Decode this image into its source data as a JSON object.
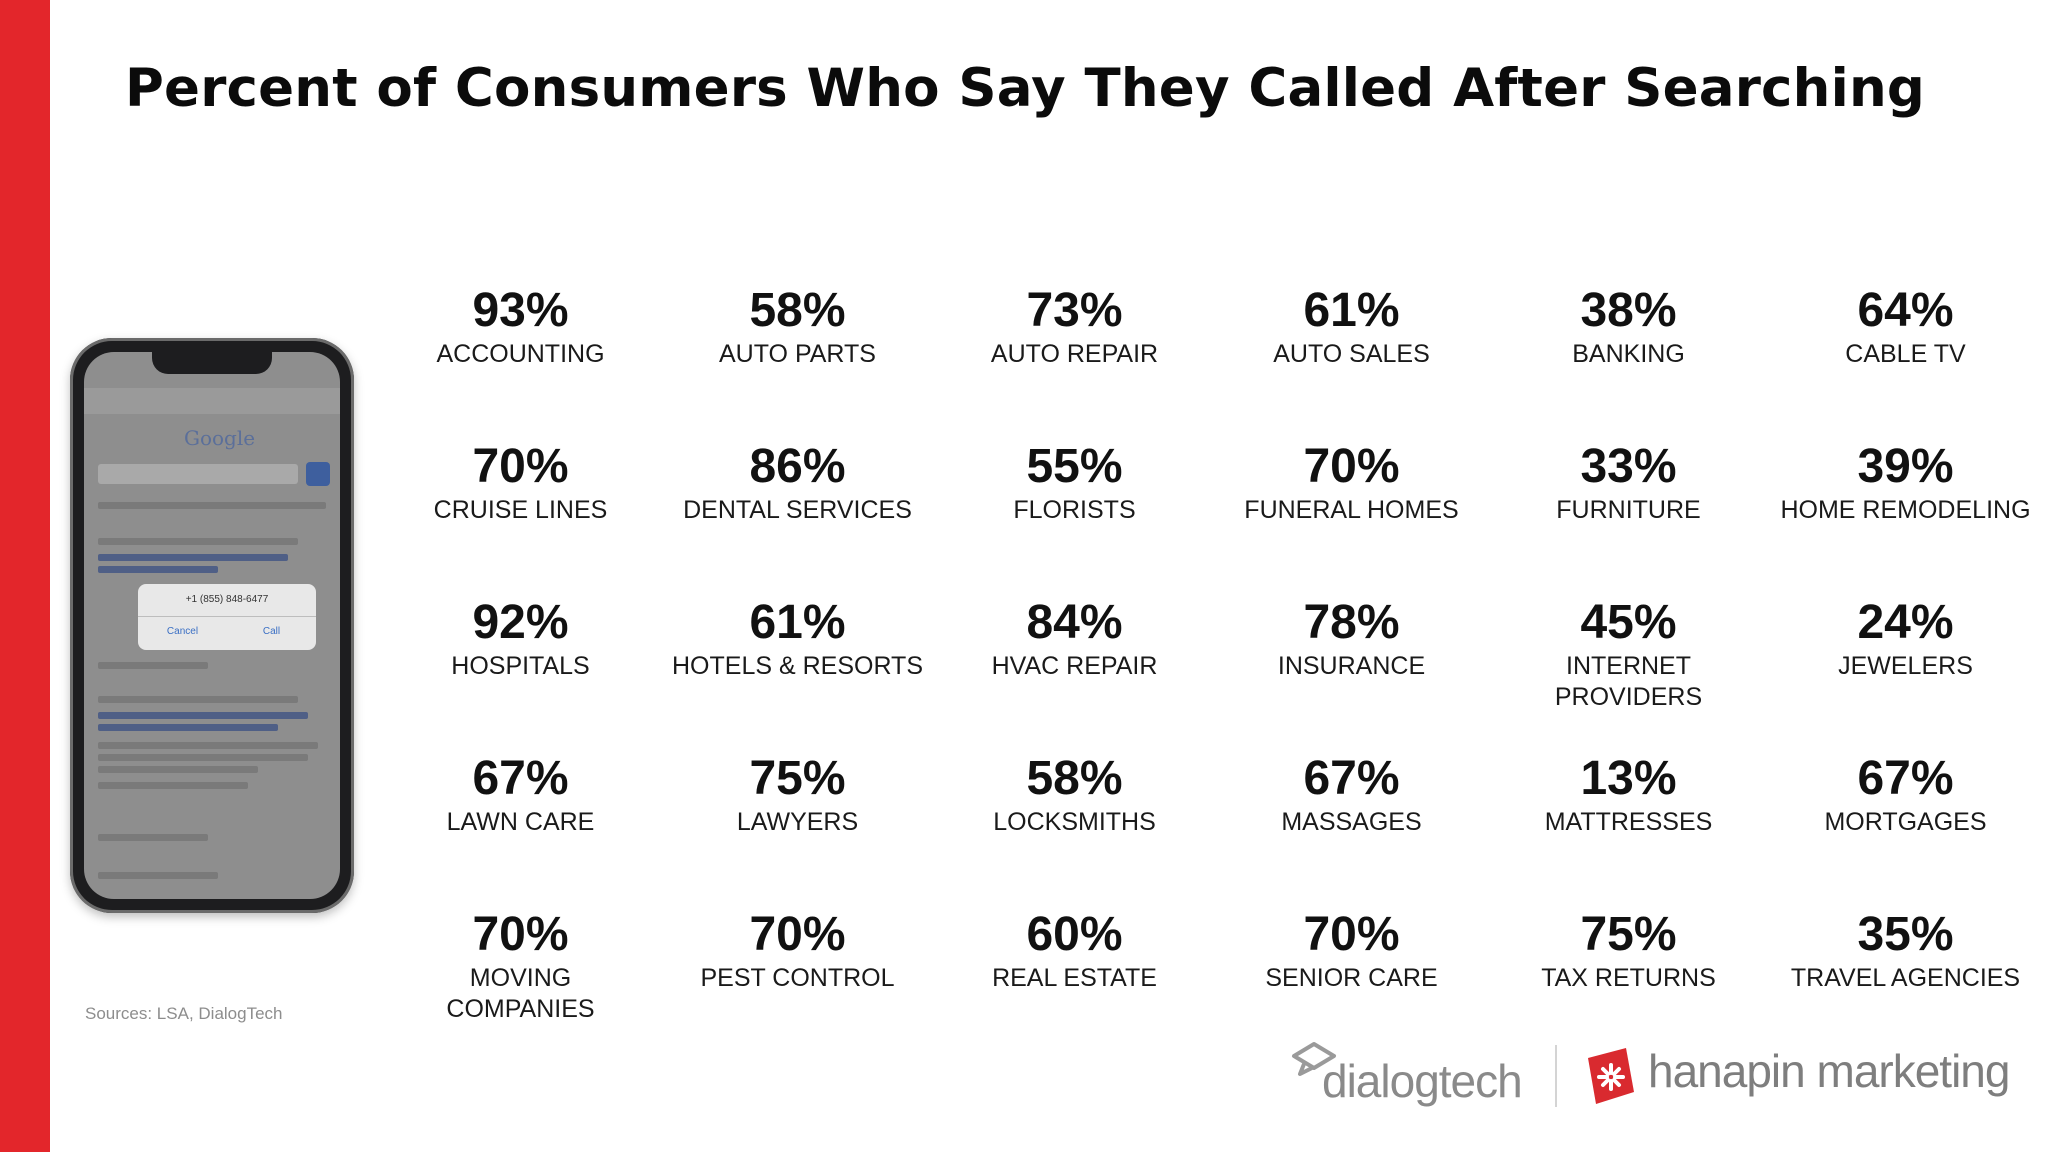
{
  "title": "Percent of Consumers Who Say They Called After Searching",
  "accent_color": "#e3262b",
  "industries": [
    {
      "percent": "93%",
      "label": "ACCOUNTING"
    },
    {
      "percent": "58%",
      "label": "AUTO PARTS"
    },
    {
      "percent": "73%",
      "label": "AUTO REPAIR"
    },
    {
      "percent": "61%",
      "label": "AUTO SALES"
    },
    {
      "percent": "38%",
      "label": "BANKING"
    },
    {
      "percent": "64%",
      "label": "CABLE TV"
    },
    {
      "percent": "70%",
      "label": "CRUISE LINES"
    },
    {
      "percent": "86%",
      "label": "DENTAL SERVICES"
    },
    {
      "percent": "55%",
      "label": "FLORISTS"
    },
    {
      "percent": "70%",
      "label": "FUNERAL HOMES"
    },
    {
      "percent": "33%",
      "label": "FURNITURE"
    },
    {
      "percent": "39%",
      "label": "HOME REMODELING"
    },
    {
      "percent": "92%",
      "label": "HOSPITALS"
    },
    {
      "percent": "61%",
      "label": "HOTELS & RESORTS"
    },
    {
      "percent": "84%",
      "label": "HVAC REPAIR"
    },
    {
      "percent": "78%",
      "label": "INSURANCE"
    },
    {
      "percent": "45%",
      "label": "INTERNET PROVIDERS"
    },
    {
      "percent": "24%",
      "label": "JEWELERS"
    },
    {
      "percent": "67%",
      "label": "LAWN CARE"
    },
    {
      "percent": "75%",
      "label": "LAWYERS"
    },
    {
      "percent": "58%",
      "label": "LOCKSMITHS"
    },
    {
      "percent": "67%",
      "label": "MASSAGES"
    },
    {
      "percent": "13%",
      "label": "MATTRESSES"
    },
    {
      "percent": "67%",
      "label": "MORTGAGES"
    },
    {
      "percent": "70%",
      "label": "MOVING COMPANIES"
    },
    {
      "percent": "70%",
      "label": "PEST CONTROL"
    },
    {
      "percent": "60%",
      "label": "REAL ESTATE"
    },
    {
      "percent": "70%",
      "label": "SENIOR CARE"
    },
    {
      "percent": "75%",
      "label": "TAX RETURNS"
    },
    {
      "percent": "35%",
      "label": "TRAVEL AGENCIES"
    }
  ],
  "phone": {
    "search_logo": "Google",
    "dialog_number": "+1 (855) 848-6477",
    "dialog_cancel": "Cancel",
    "dialog_call": "Call"
  },
  "sources": "Sources: LSA, DialogTech",
  "logos": {
    "dialogtech": "dialogtech",
    "dialogtech_icon": "dialogtech-icon",
    "hanapin": "hanapin marketing",
    "hanapin_icon": "hanapin-icon",
    "hanapin_color": "#e3262b"
  }
}
